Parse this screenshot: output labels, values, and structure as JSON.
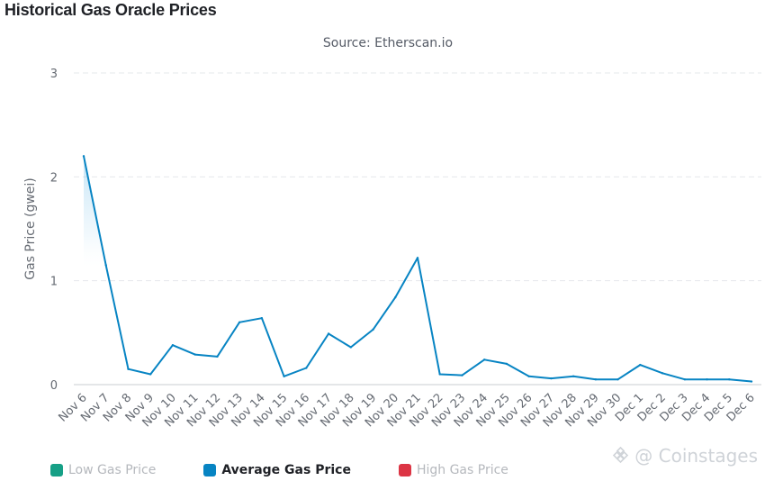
{
  "header": {
    "title": "Historical Gas Oracle Prices",
    "subtitle": "Source: Etherscan.io"
  },
  "chart_data": {
    "type": "area",
    "title": "Historical Gas Oracle Prices",
    "subtitle": "Source: Etherscan.io",
    "xlabel": "",
    "ylabel": "Gas Price (gwei)",
    "ylim": [
      0,
      3
    ],
    "yticks": [
      "0",
      "1",
      "2",
      "3"
    ],
    "grid": true,
    "legend_position": "bottom-left",
    "categories": [
      "Nov 6",
      "Nov 7",
      "Nov 8",
      "Nov 9",
      "Nov 10",
      "Nov 11",
      "Nov 12",
      "Nov 13",
      "Nov 14",
      "Nov 15",
      "Nov 16",
      "Nov 17",
      "Nov 18",
      "Nov 19",
      "Nov 20",
      "Nov 21",
      "Nov 22",
      "Nov 23",
      "Nov 24",
      "Nov 25",
      "Nov 26",
      "Nov 27",
      "Nov 28",
      "Nov 29",
      "Nov 30",
      "Dec 1",
      "Dec 2",
      "Dec 3",
      "Dec 4",
      "Dec 5",
      "Dec 6"
    ],
    "series": [
      {
        "name": "Average Gas Price",
        "color": "#0784c3",
        "visible": true,
        "values": [
          2.2,
          1.15,
          0.15,
          0.1,
          0.38,
          0.29,
          0.27,
          0.6,
          0.64,
          0.08,
          0.16,
          0.49,
          0.36,
          0.53,
          0.84,
          1.22,
          0.1,
          0.09,
          0.24,
          0.2,
          0.08,
          0.06,
          0.08,
          0.05,
          0.05,
          0.19,
          0.11,
          0.05,
          0.05,
          0.05,
          0.03
        ]
      }
    ]
  },
  "legend": [
    {
      "label": "Low Gas Price",
      "color": "#16a086",
      "visible": false
    },
    {
      "label": "Average Gas Price",
      "color": "#0784c3",
      "visible": true
    },
    {
      "label": "High Gas Price",
      "color": "#dc3545",
      "visible": false
    }
  ],
  "watermark": {
    "text": "@ Coinstages",
    "icon": "binance-square-icon"
  }
}
